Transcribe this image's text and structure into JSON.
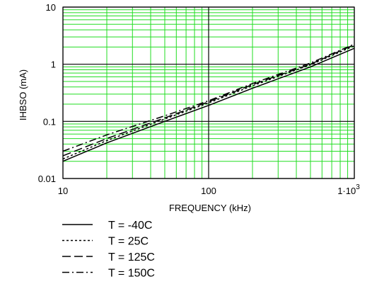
{
  "chart_data": {
    "type": "line",
    "xlabel": "FREQUENCY (kHz)",
    "ylabel": "IHBSO (mA)",
    "x_scale": "log",
    "y_scale": "log",
    "xlim": [
      10,
      1000
    ],
    "ylim": [
      0.01,
      10
    ],
    "x_ticks": [
      {
        "value": 10,
        "label": "10"
      },
      {
        "value": 100,
        "label": "100"
      },
      {
        "value": 1000,
        "label": "1·10",
        "exp": "3"
      }
    ],
    "y_ticks": [
      {
        "value": 10,
        "label": "10"
      },
      {
        "value": 1,
        "label": "1"
      },
      {
        "value": 0.1,
        "label": "0.1"
      },
      {
        "value": 0.01,
        "label": "0.01"
      }
    ],
    "grid": true,
    "grid_color": "#22dd22",
    "legend_position": "below",
    "series": [
      {
        "name": "T = -40C",
        "dash": "solid",
        "x": [
          10,
          20,
          50,
          100,
          200,
          500,
          1000
        ],
        "y": [
          0.02,
          0.042,
          0.1,
          0.19,
          0.38,
          0.9,
          1.9
        ]
      },
      {
        "name": "T = 25C",
        "dash": "dotted",
        "x": [
          10,
          20,
          50,
          100,
          200,
          500,
          1000
        ],
        "y": [
          0.022,
          0.046,
          0.11,
          0.21,
          0.42,
          0.98,
          2.1
        ]
      },
      {
        "name": "T = 125C",
        "dash": "long-dash",
        "x": [
          10,
          20,
          50,
          100,
          200,
          500,
          1000
        ],
        "y": [
          0.025,
          0.05,
          0.115,
          0.22,
          0.44,
          1.0,
          2.2
        ]
      },
      {
        "name": "T = 150C",
        "dash": "dash-dot",
        "x": [
          10,
          20,
          50,
          100,
          200,
          500,
          1000
        ],
        "y": [
          0.03,
          0.058,
          0.125,
          0.23,
          0.46,
          1.05,
          2.25
        ]
      }
    ]
  }
}
